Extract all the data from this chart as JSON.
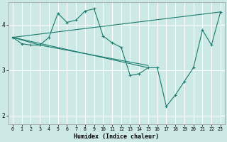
{
  "xlabel": "Humidex (Indice chaleur)",
  "xlim": [
    -0.5,
    23.5
  ],
  "ylim": [
    1.8,
    4.5
  ],
  "yticks": [
    2,
    3,
    4
  ],
  "xticks": [
    0,
    1,
    2,
    3,
    4,
    5,
    6,
    7,
    8,
    9,
    10,
    11,
    12,
    13,
    14,
    15,
    16,
    17,
    18,
    19,
    20,
    21,
    22,
    23
  ],
  "bg_color": "#cce9e5",
  "grid_color": "#ffffff",
  "line_color": "#1a7a6e",
  "lines": [
    {
      "x": [
        0,
        1,
        2,
        3,
        4,
        5,
        6,
        7,
        8,
        9,
        10,
        11,
        12,
        13,
        14,
        15,
        16,
        17,
        18,
        19,
        20,
        21,
        22,
        23
      ],
      "y": [
        3.72,
        3.58,
        3.55,
        3.55,
        3.72,
        4.25,
        4.05,
        4.1,
        4.3,
        4.35,
        3.75,
        3.6,
        3.5,
        2.88,
        2.92,
        3.05,
        3.05,
        2.2,
        2.45,
        2.75,
        3.05,
        3.88,
        3.55,
        4.28
      ],
      "markers": true
    },
    {
      "x": [
        0,
        23
      ],
      "y": [
        3.72,
        4.28
      ],
      "markers": false
    },
    {
      "x": [
        0,
        15
      ],
      "y": [
        3.72,
        3.05
      ],
      "markers": false
    },
    {
      "x": [
        0,
        3,
        15
      ],
      "y": [
        3.72,
        3.55,
        3.1
      ],
      "markers": false
    }
  ],
  "figsize": [
    3.2,
    2.0
  ],
  "dpi": 100
}
